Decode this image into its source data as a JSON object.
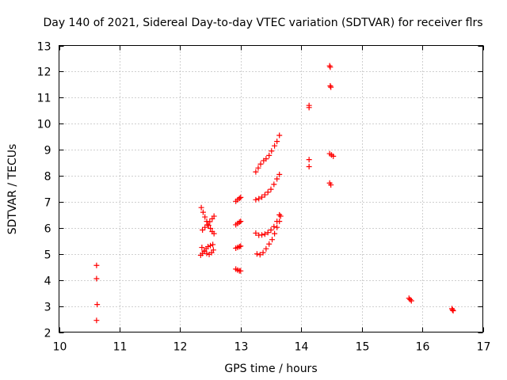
{
  "chart_data": {
    "type": "scatter",
    "title": "Day 140 of 2021, Sidereal Day-to-day VTEC variation (SDTVAR) for receiver flrs",
    "xlabel": "GPS time / hours",
    "ylabel": "SDTVAR / TECUs",
    "xlim": [
      10,
      17
    ],
    "ylim": [
      2,
      13
    ],
    "xticks": [
      10,
      11,
      12,
      13,
      14,
      15,
      16,
      17
    ],
    "yticks": [
      2,
      3,
      4,
      5,
      6,
      7,
      8,
      9,
      10,
      11,
      12,
      13
    ],
    "grid": true,
    "marker": "+",
    "color": "#ff0000",
    "series": [
      {
        "name": "SDTVAR",
        "points": [
          [
            10.62,
            4.56
          ],
          [
            10.62,
            4.05
          ],
          [
            10.63,
            3.06
          ],
          [
            10.62,
            2.45
          ],
          [
            12.35,
            6.78
          ],
          [
            12.38,
            6.6
          ],
          [
            12.41,
            6.42
          ],
          [
            12.44,
            6.25
          ],
          [
            12.47,
            6.1
          ],
          [
            12.5,
            5.98
          ],
          [
            12.53,
            5.86
          ],
          [
            12.56,
            5.78
          ],
          [
            12.37,
            5.92
          ],
          [
            12.41,
            6.02
          ],
          [
            12.45,
            6.12
          ],
          [
            12.49,
            6.24
          ],
          [
            12.53,
            6.35
          ],
          [
            12.56,
            6.45
          ],
          [
            12.34,
            4.95
          ],
          [
            12.37,
            5.02
          ],
          [
            12.4,
            5.1
          ],
          [
            12.43,
            5.2
          ],
          [
            12.46,
            5.28
          ],
          [
            12.5,
            5.32
          ],
          [
            12.54,
            5.36
          ],
          [
            12.36,
            5.25
          ],
          [
            12.4,
            5.12
          ],
          [
            12.44,
            5.02
          ],
          [
            12.48,
            4.98
          ],
          [
            12.52,
            5.05
          ],
          [
            12.55,
            5.15
          ],
          [
            12.92,
            7.02
          ],
          [
            12.95,
            7.08
          ],
          [
            12.98,
            7.13
          ],
          [
            13.0,
            7.17
          ],
          [
            12.92,
            6.12
          ],
          [
            12.95,
            6.17
          ],
          [
            12.98,
            6.22
          ],
          [
            13.0,
            6.25
          ],
          [
            12.92,
            5.22
          ],
          [
            12.95,
            5.25
          ],
          [
            12.98,
            5.28
          ],
          [
            13.0,
            5.3
          ],
          [
            12.92,
            4.42
          ],
          [
            12.95,
            4.38
          ],
          [
            12.98,
            4.35
          ],
          [
            13.0,
            4.35
          ],
          [
            13.25,
            8.15
          ],
          [
            13.29,
            8.3
          ],
          [
            13.33,
            8.45
          ],
          [
            13.38,
            8.58
          ],
          [
            13.42,
            8.65
          ],
          [
            13.47,
            8.78
          ],
          [
            13.51,
            8.95
          ],
          [
            13.56,
            9.15
          ],
          [
            13.6,
            9.32
          ],
          [
            13.64,
            9.55
          ],
          [
            13.25,
            7.08
          ],
          [
            13.3,
            7.12
          ],
          [
            13.35,
            7.18
          ],
          [
            13.4,
            7.27
          ],
          [
            13.45,
            7.37
          ],
          [
            13.5,
            7.48
          ],
          [
            13.55,
            7.67
          ],
          [
            13.6,
            7.88
          ],
          [
            13.64,
            8.05
          ],
          [
            13.25,
            5.8
          ],
          [
            13.3,
            5.72
          ],
          [
            13.35,
            5.73
          ],
          [
            13.4,
            5.76
          ],
          [
            13.45,
            5.82
          ],
          [
            13.5,
            5.92
          ],
          [
            13.55,
            6.05
          ],
          [
            13.6,
            6.25
          ],
          [
            13.64,
            6.5
          ],
          [
            13.27,
            5.0
          ],
          [
            13.32,
            4.97
          ],
          [
            13.37,
            5.05
          ],
          [
            13.42,
            5.2
          ],
          [
            13.47,
            5.38
          ],
          [
            13.52,
            5.55
          ],
          [
            13.56,
            5.78
          ],
          [
            13.6,
            6.02
          ],
          [
            13.64,
            6.25
          ],
          [
            13.66,
            6.45
          ],
          [
            14.13,
            10.7
          ],
          [
            14.13,
            10.62
          ],
          [
            14.13,
            8.62
          ],
          [
            14.13,
            8.35
          ],
          [
            14.47,
            12.22
          ],
          [
            14.48,
            12.17
          ],
          [
            14.48,
            11.45
          ],
          [
            14.49,
            11.4
          ],
          [
            14.47,
            8.85
          ],
          [
            14.5,
            8.8
          ],
          [
            14.53,
            8.75
          ],
          [
            14.47,
            7.72
          ],
          [
            14.49,
            7.65
          ],
          [
            15.78,
            3.3
          ],
          [
            15.8,
            3.25
          ],
          [
            15.82,
            3.2
          ],
          [
            16.49,
            2.9
          ],
          [
            16.5,
            2.85
          ],
          [
            16.51,
            2.82
          ]
        ]
      }
    ]
  }
}
